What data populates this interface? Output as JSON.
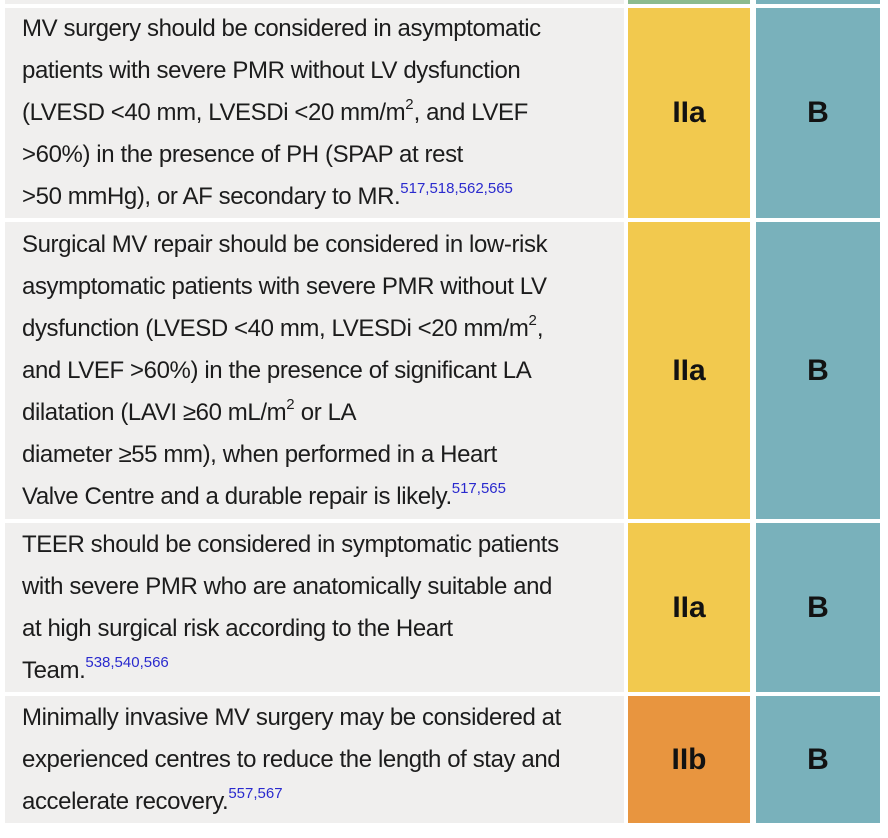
{
  "page": {
    "background": "#ffffff"
  },
  "colors": {
    "recommendation_cell_bg": "#f0efee",
    "class_I_green": "#8cbb8e",
    "class_IIa_yellow": "#f2c94e",
    "class_IIb_orange": "#e8953f",
    "evidence_B_teal": "#79b1bb",
    "border_white": "#ffffff",
    "body_text": "#1c1c1c",
    "reference_link_blue": "#2a2ace"
  },
  "table": {
    "rows": [
      {
        "segments": [
          "MV surgery should be considered in asymptomatic\npatients with severe PMR without LV dysfunction\n(LVESD <40 mm, LVESDi <20 mm/m",
          ", and LVEF\n>60%) in the presence of PH (SPAP at rest\n>50 mmHg), or AF secondary to MR."
        ],
        "superscripts": [
          "2"
        ],
        "references": "517,518,562,565",
        "class_label": "IIa",
        "evidence_label": "B"
      },
      {
        "segments": [
          "Surgical MV repair should be considered in low-risk\nasymptomatic patients with severe PMR without LV\ndysfunction (LVESD <40 mm, LVESDi <20 mm/m",
          ",\nand LVEF >60%) in the presence of significant LA\ndilatation (LAVI ≥60 mL/m",
          " or LA\ndiameter ≥55 mm), when performed in a Heart\nValve Centre and a durable repair is likely."
        ],
        "superscripts": [
          "2",
          "2"
        ],
        "references": "517,565",
        "class_label": "IIa",
        "evidence_label": "B"
      },
      {
        "segments": [
          "TEER should be considered in symptomatic patients\nwith severe PMR who are anatomically suitable and\nat high surgical risk according to the Heart\nTeam."
        ],
        "superscripts": [],
        "references": "538,540,566",
        "class_label": "IIa",
        "evidence_label": "B"
      },
      {
        "segments": [
          "Minimally invasive MV surgery may be considered at\nexperienced centres to reduce the length of stay and\naccelerate recovery."
        ],
        "superscripts": [],
        "references": "557,567",
        "class_label": "IIb",
        "evidence_label": "B"
      }
    ]
  }
}
